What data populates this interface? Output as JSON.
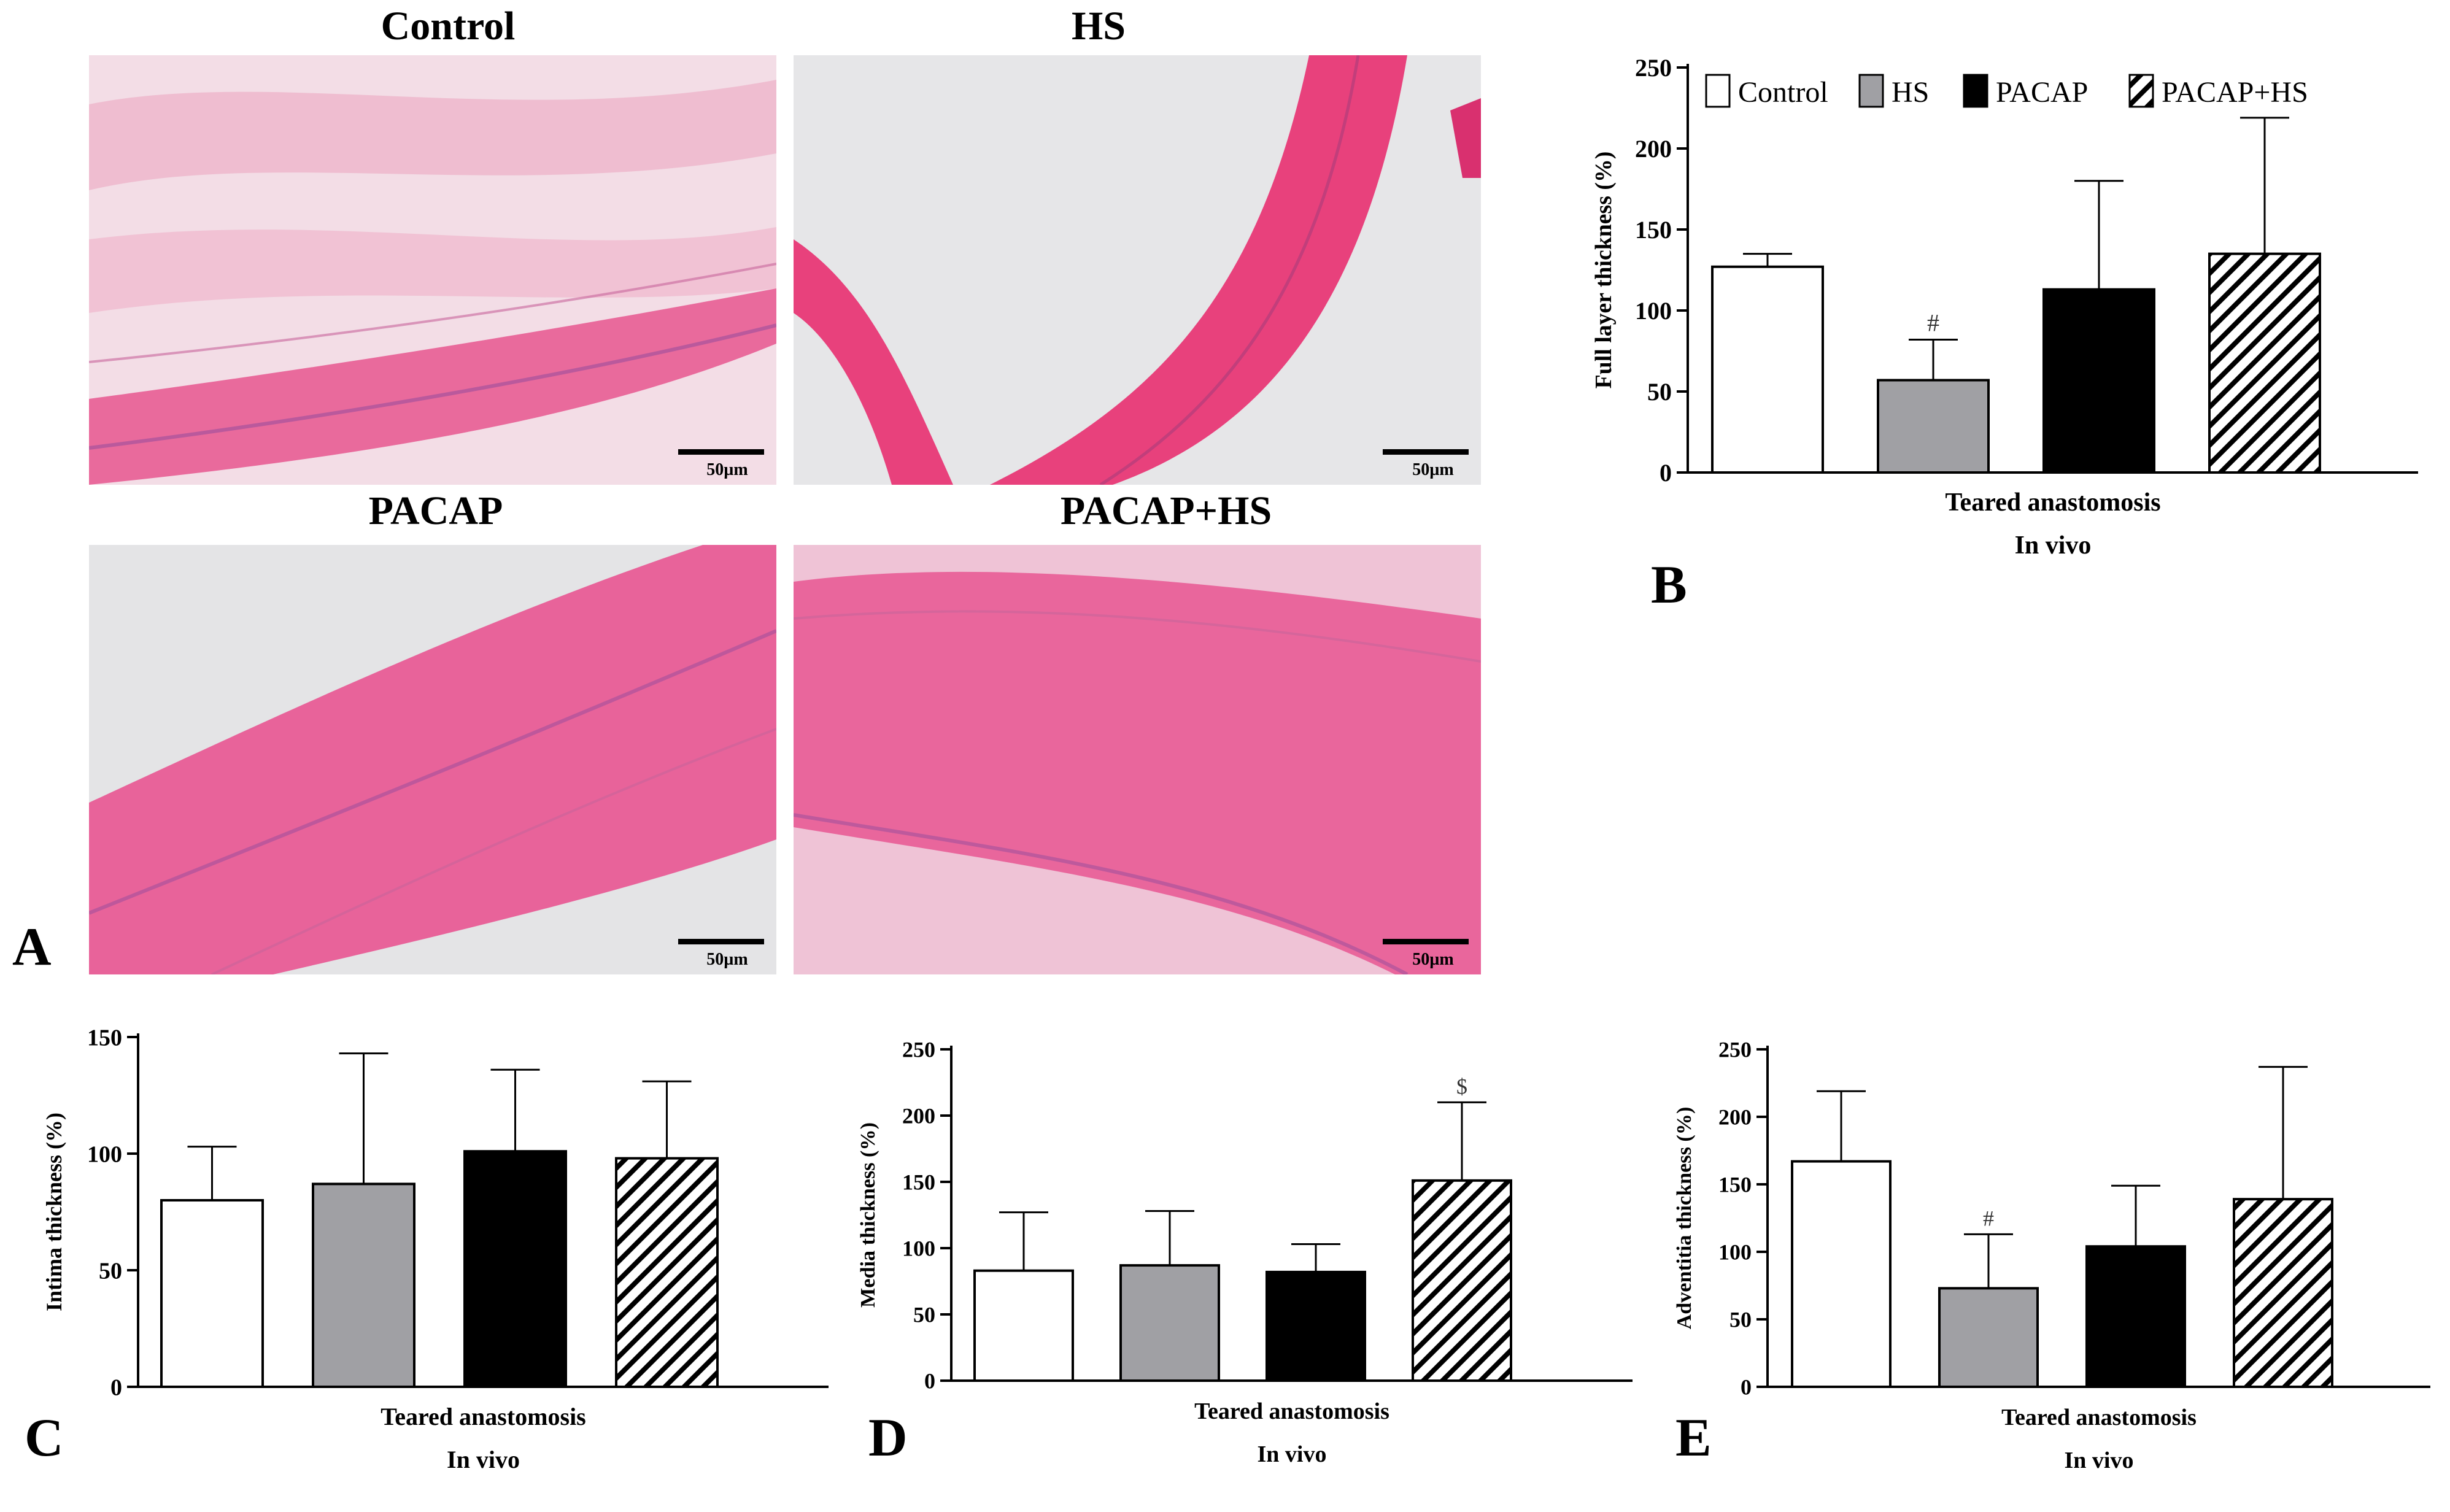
{
  "panels": {
    "A": "A",
    "B": "B",
    "C": "C",
    "D": "D",
    "E": "E"
  },
  "micrographs": [
    {
      "title": "Control",
      "scale_label": "50µm",
      "color_bg": "#f3dde6",
      "color_tissue": "#e96a9c"
    },
    {
      "title": "HS",
      "scale_label": "50µm",
      "color_bg": "#e6e6e8",
      "color_tissue": "#e8417c"
    },
    {
      "title": "PACAP",
      "scale_label": "50µm",
      "color_bg": "#e4e4e6",
      "color_tissue": "#e8639a"
    },
    {
      "title": "PACAP+HS",
      "scale_label": "50µm",
      "color_bg": "#efc3d6",
      "color_tissue": "#e9669c"
    }
  ],
  "legend": [
    {
      "label": "Control",
      "pattern": "white"
    },
    {
      "label": "HS",
      "pattern": "gray"
    },
    {
      "label": "PACAP",
      "pattern": "black"
    },
    {
      "label": "PACAP+HS",
      "pattern": "hatch"
    }
  ],
  "chart_data": [
    {
      "panel": "B",
      "type": "bar",
      "categories": [
        "Control",
        "HS",
        "PACAP",
        "PACAP+HS"
      ],
      "values": [
        127,
        57,
        113,
        135
      ],
      "errors": [
        8,
        25,
        67,
        84
      ],
      "annotations": [
        "",
        "#",
        "",
        ""
      ],
      "ylabel": "Full layer thickness (%)",
      "xlabel": [
        "Teared anastomosis",
        "In vivo"
      ],
      "ylim": [
        0,
        250
      ],
      "yticks": [
        0,
        50,
        100,
        150,
        200,
        250
      ]
    },
    {
      "panel": "C",
      "type": "bar",
      "categories": [
        "Control",
        "HS",
        "PACAP",
        "PACAP+HS"
      ],
      "values": [
        80,
        87,
        101,
        98
      ],
      "errors": [
        23,
        56,
        35,
        33
      ],
      "annotations": [
        "",
        "",
        "",
        ""
      ],
      "ylabel": "Intima thickness (%)",
      "xlabel": [
        "Teared anastomosis",
        "In vivo"
      ],
      "ylim": [
        0,
        150
      ],
      "yticks": [
        0,
        50,
        100,
        150
      ]
    },
    {
      "panel": "D",
      "type": "bar",
      "categories": [
        "Control",
        "HS",
        "PACAP",
        "PACAP+HS"
      ],
      "values": [
        83,
        87,
        82,
        151
      ],
      "errors": [
        44,
        41,
        21,
        59
      ],
      "annotations": [
        "",
        "",
        "",
        "$"
      ],
      "ylabel": "Media thickness (%)",
      "xlabel": [
        "Teared anastomosis",
        "In vivo"
      ],
      "ylim": [
        0,
        250
      ],
      "yticks": [
        0,
        50,
        100,
        150,
        200,
        250
      ]
    },
    {
      "panel": "E",
      "type": "bar",
      "categories": [
        "Control",
        "HS",
        "PACAP",
        "PACAP+HS"
      ],
      "values": [
        167,
        73,
        104,
        139
      ],
      "errors": [
        52,
        40,
        45,
        98
      ],
      "annotations": [
        "",
        "#",
        "",
        ""
      ],
      "ylabel": "Adventitia thickness (%)",
      "xlabel": [
        "Teared anastomosis",
        "In vivo"
      ],
      "ylim": [
        0,
        250
      ],
      "yticks": [
        0,
        50,
        100,
        150,
        200,
        250
      ]
    }
  ]
}
